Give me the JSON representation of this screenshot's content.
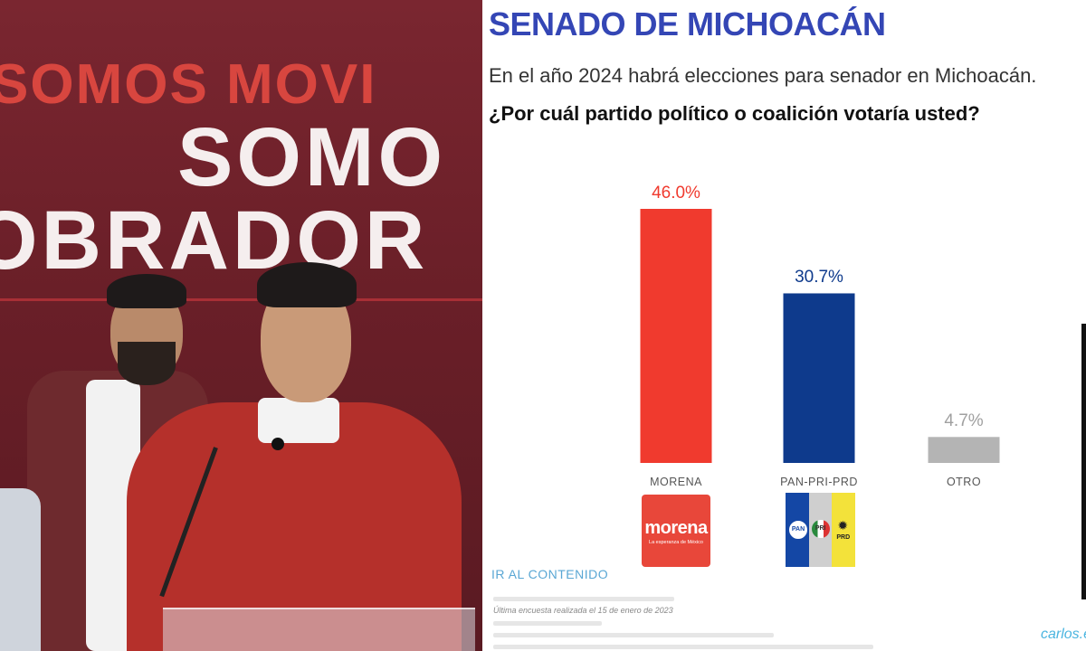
{
  "photo": {
    "banner_line1": "SOMOS MOVI",
    "banner_line2": "SOMO",
    "banner_line3": "OBRADOR"
  },
  "header": {
    "title": "SENADO DE MICHOACÁN",
    "subtitle": "En el año 2024 habrá elecciones para senador en Michoacán.",
    "question": "¿Por cuál partido político o coalición votaría usted?"
  },
  "logos": {
    "morena_word": "morena",
    "morena_tagline": "La esperanza de México",
    "pan": "PAN",
    "pri": "PRI",
    "prd": "PRD"
  },
  "footer": {
    "link": "IR AL CONTENIDO",
    "note": "Última encuesta realizada el 15 de enero de 2023",
    "brand": "carlos.e"
  },
  "colors": {
    "title": "#3446b5",
    "morena": "#f03a2e",
    "coalicion": "#0e3a8c",
    "otro": "#b4b4b4"
  },
  "chart_data": {
    "type": "bar",
    "categories": [
      "MORENA",
      "PAN-PRI-PRD",
      "OTRO"
    ],
    "values": [
      46.0,
      30.7,
      4.7
    ],
    "value_labels": [
      "46.0%",
      "30.7%",
      "4.7%"
    ],
    "bar_colors": [
      "#f03a2e",
      "#0e3a8c",
      "#b4b4b4"
    ],
    "label_colors": [
      "#f03a2e",
      "#0e3a8c",
      "#a0a0a0"
    ],
    "ylim": [
      0,
      46.0
    ],
    "grid": false,
    "legend": "none"
  }
}
